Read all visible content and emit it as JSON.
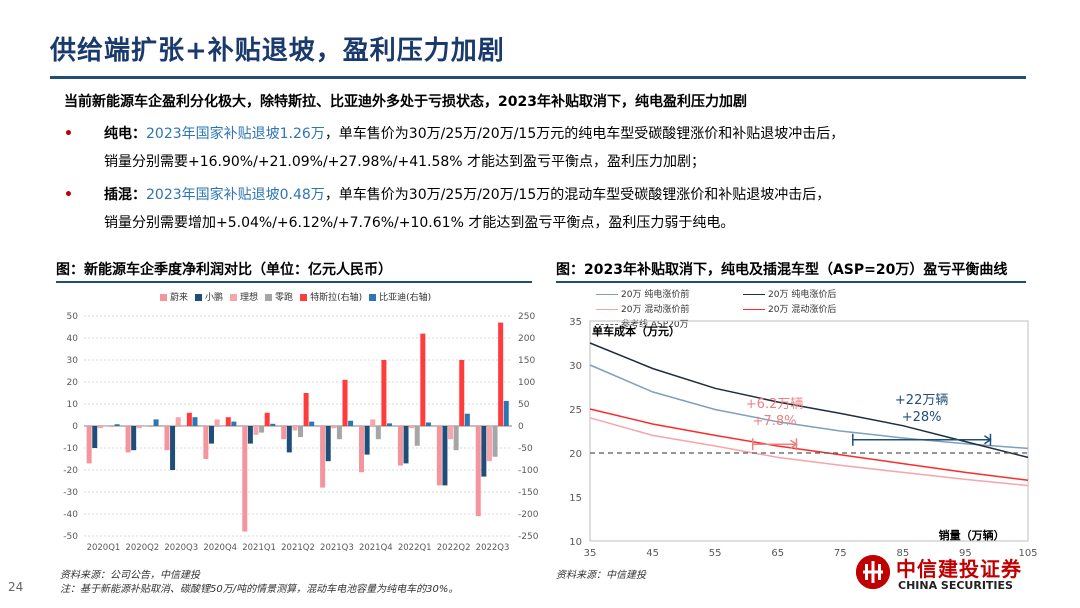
{
  "page": {
    "title": "供给端扩张+补贴退坡，盈利压力加剧",
    "lead": "当前新能源车企盈利分化极大，除特斯拉、比亚迪外多处于亏损状态，2023年补贴取消下，纯电盈利压力加剧",
    "bullets": [
      {
        "dot": "•",
        "label": "纯电：",
        "highlight": "2023年国家补贴退坡1.26万",
        "line1": "，单车售价为30万/25万/20万/15万元的纯电车型受碳酸锂涨价和补贴退坡冲击后，",
        "line2": "销量分别需要+16.90%/+21.09%/+27.98%/+41.58% 才能达到盈亏平衡点，盈利压力加剧；"
      },
      {
        "dot": "•",
        "label": "插混：",
        "highlight": "2023年国家补贴退坡0.48万",
        "line1": "，单车售价为30万/25万/20万/15万的混动车型受碳酸锂涨价和补贴退坡冲击后，",
        "line2": "销量分别需要增加+5.04%/+6.12%/+7.76%/+10.61% 才能达到盈亏平衡点，盈利压力弱于纯电。"
      }
    ],
    "left_chart_title": "图：新能源车企季度净利润对比（单位：亿元人民币）",
    "right_chart_title": "图：2023年补贴取消下，纯电及插混车型（ASP=20万）盈亏平衡曲线",
    "left_source": "资料来源：公司公告，中信建投",
    "left_note": "注：基于新能源补贴取消、碳酸锂50万/吨的情景测算，混动车电池容量为纯电车的30%。",
    "right_source": "资料来源：中信建投",
    "page_number": "24",
    "logo_cn": "中信建投证券",
    "logo_en": "CHINA SECURITIES"
  },
  "chart_data": [
    {
      "type": "bar",
      "categories": [
        "2020Q1",
        "2020Q2",
        "2020Q3",
        "2020Q4",
        "2021Q1",
        "2021Q2",
        "2021Q3",
        "2021Q4",
        "2022Q1",
        "2022Q2",
        "2022Q3"
      ],
      "ylim": [
        -50,
        50
      ],
      "y_ticks": [
        -50,
        -40,
        -30,
        -20,
        -10,
        0,
        10,
        20,
        30,
        40,
        50
      ],
      "y2lim": [
        -250,
        250
      ],
      "y2_ticks": [
        -250,
        -200,
        -150,
        -100,
        -50,
        0,
        50,
        100,
        150,
        200,
        250
      ],
      "series": [
        {
          "name": "蔚来",
          "axis": "left",
          "color": "#f4949c",
          "values": [
            -17,
            -12,
            -11,
            -15,
            -48,
            -6,
            -28,
            -21,
            -18,
            -27,
            -41
          ]
        },
        {
          "name": "小鹏",
          "axis": "left",
          "color": "#1f4e79",
          "values": [
            -10,
            -11,
            -20,
            -8,
            -8,
            -12,
            -16,
            -13,
            -17,
            -27,
            -23
          ]
        },
        {
          "name": "理想",
          "axis": "left",
          "color": "#f6a5ab",
          "values": [
            -1,
            -1,
            4,
            3,
            -4,
            -2,
            -1,
            3,
            -1,
            -6,
            -16
          ]
        },
        {
          "name": "零跑",
          "axis": "left",
          "color": "#a6a6a6",
          "values": [
            0,
            0,
            0,
            0,
            -3,
            -5,
            -6,
            -6,
            -9,
            -11,
            -14
          ]
        },
        {
          "name": "特斯拉(右轴)",
          "axis": "right",
          "color": "#ff3b3b",
          "values": [
            0,
            0,
            30,
            20,
            30,
            75,
            105,
            150,
            210,
            150,
            235
          ]
        },
        {
          "name": "比亚迪(右轴)",
          "axis": "right",
          "color": "#2e75b6",
          "values": [
            4,
            15,
            20,
            10,
            5,
            10,
            12,
            6,
            8,
            28,
            57
          ]
        }
      ]
    },
    {
      "type": "line",
      "ylabel": "单车成本（万元）",
      "xlabel": "销量（万辆）",
      "xlim": [
        35,
        105
      ],
      "ylim": [
        10,
        35
      ],
      "x_ticks": [
        35,
        45,
        55,
        65,
        75,
        85,
        95,
        105
      ],
      "y_ticks": [
        10,
        15,
        20,
        25,
        30,
        35
      ],
      "series": [
        {
          "name": "20万 纯电涨价前",
          "color": "#7f9fbf",
          "width": 1.5,
          "dash": "",
          "points": [
            [
              35,
              30
            ],
            [
              45,
              26.94
            ],
            [
              55,
              24.94
            ],
            [
              65,
              23.54
            ],
            [
              75,
              22.5
            ],
            [
              85,
              21.7
            ],
            [
              95,
              21.05
            ],
            [
              105,
              20.52
            ]
          ]
        },
        {
          "name": "20万 纯电涨价后",
          "color": "#1f2d3d",
          "width": 1.5,
          "dash": "",
          "points": [
            [
              35,
              32.5
            ],
            [
              45,
              29.6
            ],
            [
              55,
              27.35
            ],
            [
              65,
              25.8
            ],
            [
              75,
              24.5
            ],
            [
              85,
              23.1
            ],
            [
              95,
              21.3
            ],
            [
              105,
              19.5
            ]
          ]
        },
        {
          "name": "20万 混动涨价前",
          "color": "#f6a5ab",
          "width": 1.5,
          "dash": "",
          "points": [
            [
              35,
              24
            ],
            [
              45,
              22
            ],
            [
              55,
              20.8
            ],
            [
              65,
              19.5
            ],
            [
              75,
              18.6
            ],
            [
              85,
              17.8
            ],
            [
              95,
              17
            ],
            [
              105,
              16.3
            ]
          ]
        },
        {
          "name": "20万 混动涨价后",
          "color": "#ff2a2a",
          "width": 1.5,
          "dash": "",
          "points": [
            [
              35,
              25
            ],
            [
              45,
              23.3
            ],
            [
              55,
              22
            ],
            [
              65,
              20.8
            ],
            [
              75,
              19.8
            ],
            [
              85,
              18.8
            ],
            [
              95,
              17.8
            ],
            [
              105,
              16.9
            ]
          ]
        },
        {
          "name": "参考线 ASP20万",
          "color": "#595959",
          "width": 1.2,
          "dash": "5,4",
          "points": [
            [
              35,
              20
            ],
            [
              105,
              20
            ]
          ]
        }
      ],
      "annotations": [
        {
          "text1": "+6.2万辆",
          "text2": "+7.8%",
          "color": "#f08080",
          "x_from": 61,
          "x_to": 68,
          "y": 21
        },
        {
          "text1": "+22万辆",
          "text2": "+28%",
          "color": "#1f4e79",
          "x_from": 77,
          "x_to": 99,
          "y": 21.5
        }
      ]
    }
  ]
}
